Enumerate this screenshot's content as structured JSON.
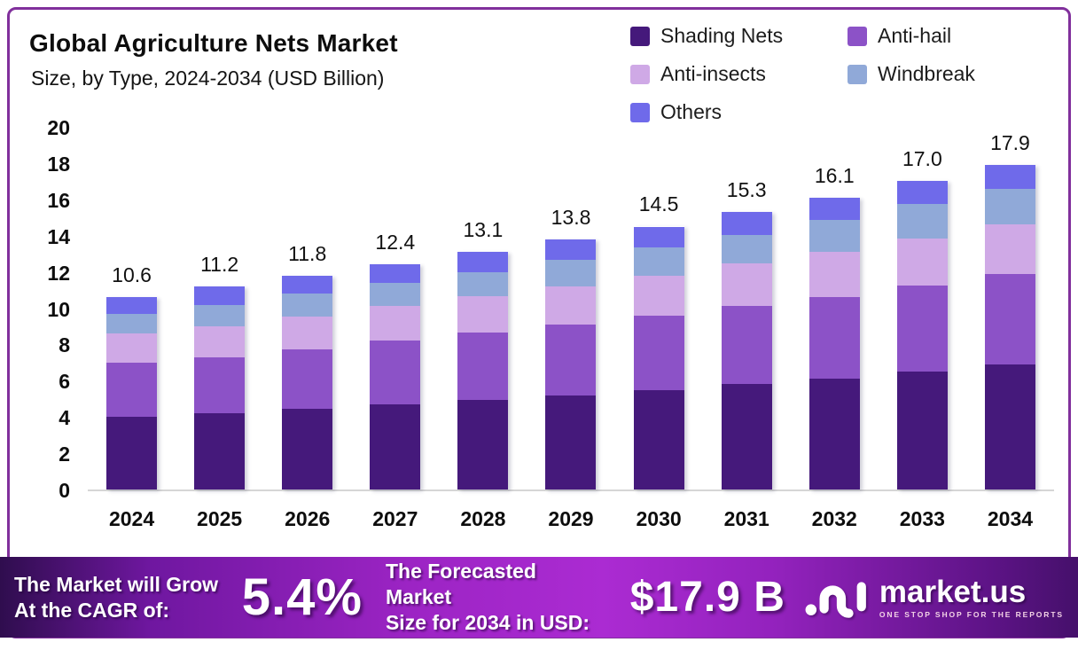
{
  "header": {
    "title": "Global Agriculture Nets Market",
    "subtitle": "Size, by Type, 2024-2034 (USD Billion)"
  },
  "chart_data": {
    "type": "bar",
    "stacked": true,
    "grid": false,
    "legend_position": "top-right",
    "categories": [
      "2024",
      "2025",
      "2026",
      "2027",
      "2028",
      "2029",
      "2030",
      "2031",
      "2032",
      "2033",
      "2034"
    ],
    "series": [
      {
        "name": "Shading Nets",
        "color": "#45197B",
        "values": [
          4.0,
          4.2,
          4.45,
          4.7,
          4.95,
          5.2,
          5.5,
          5.8,
          6.1,
          6.5,
          6.9
        ]
      },
      {
        "name": "Anti-hail",
        "color": "#8C52C7",
        "values": [
          3.0,
          3.1,
          3.3,
          3.5,
          3.7,
          3.9,
          4.1,
          4.3,
          4.5,
          4.75,
          5.0
        ]
      },
      {
        "name": "Anti-insects",
        "color": "#CFA9E6",
        "values": [
          1.6,
          1.7,
          1.8,
          1.9,
          2.0,
          2.1,
          2.2,
          2.35,
          2.5,
          2.6,
          2.7
        ]
      },
      {
        "name": "Windbreak",
        "color": "#90A9D8",
        "values": [
          1.1,
          1.15,
          1.25,
          1.3,
          1.35,
          1.45,
          1.55,
          1.6,
          1.75,
          1.9,
          2.0
        ]
      },
      {
        "name": "Others",
        "color": "#6F6AEA",
        "values": [
          0.9,
          1.05,
          1.0,
          1.0,
          1.1,
          1.15,
          1.15,
          1.25,
          1.25,
          1.25,
          1.3
        ]
      }
    ],
    "totals": [
      "10.6",
      "11.2",
      "11.8",
      "12.4",
      "13.1",
      "13.8",
      "14.5",
      "15.3",
      "16.1",
      "17.0",
      "17.9"
    ],
    "ylim": [
      0,
      20
    ],
    "yticks": [
      0,
      2,
      4,
      6,
      8,
      10,
      12,
      14,
      16,
      18,
      20
    ],
    "xlabel": "",
    "ylabel": ""
  },
  "banner": {
    "growth_label_line1": "The Market will Grow",
    "growth_label_line2": "At the CAGR of:",
    "cagr_value": "5.4%",
    "forecast_label_line1": "The Forecasted Market",
    "forecast_label_line2": "Size for 2034 in USD:",
    "forecast_value": "$17.9 B",
    "logo_name": "market.us",
    "logo_tagline": "ONE STOP SHOP FOR THE REPORTS"
  },
  "colors": {
    "card_border": "#81309C",
    "banner_gradient_start": "#2f0d4e",
    "banner_gradient_mid": "#ab2bd2",
    "banner_gradient_end": "#45106b",
    "axis_line": "#d6d6d6"
  }
}
